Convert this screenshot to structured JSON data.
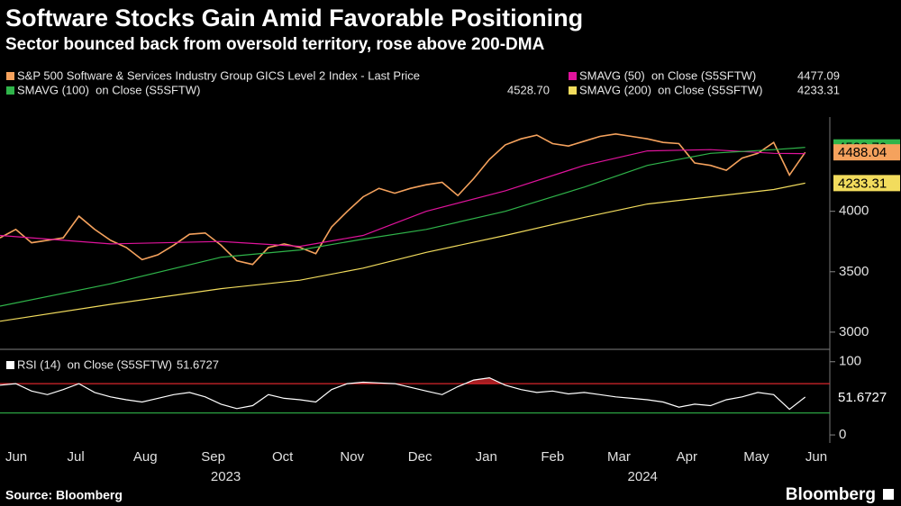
{
  "chart_data": [
    {
      "type": "line",
      "title": "Software Stocks Gain Amid Favorable Positioning",
      "subtitle": "Sector bounced back from oversold territory, rose above 200-DMA",
      "xlim": [
        0,
        52.5
      ],
      "ylim": [
        2880,
        4780
      ],
      "yticks": [
        3000,
        3500,
        4000
      ],
      "series": [
        {
          "name": "S&P 500 Software & Services Industry Group GICS Level 2 Index - Last Price",
          "color": "#f5a25d",
          "legend_value": false,
          "tag": true,
          "values": [
            3780,
            3850,
            3740,
            3760,
            3780,
            3960,
            3850,
            3760,
            3700,
            3600,
            3640,
            3720,
            3810,
            3820,
            3720,
            3590,
            3560,
            3700,
            3730,
            3700,
            3650,
            3870,
            4000,
            4120,
            4190,
            4150,
            4190,
            4220,
            4240,
            4130,
            4270,
            4430,
            4550,
            4600,
            4630,
            4560,
            4540,
            4580,
            4620,
            4640,
            4620,
            4600,
            4570,
            4560,
            4400,
            4380,
            4340,
            4440,
            4480,
            4570,
            4300,
            4488.04
          ]
        },
        {
          "name": "SMAVG (50)  on Close (S5SFTW)",
          "color": "#e0139c",
          "tag": false,
          "x": [
            0,
            7,
            14,
            19,
            23,
            27,
            32,
            37,
            41,
            45,
            49,
            51
          ],
          "values": [
            3800,
            3730,
            3750,
            3710,
            3800,
            4000,
            4170,
            4380,
            4500,
            4510,
            4480,
            4477.09
          ]
        },
        {
          "name": "SMAVG (100)  on Close (S5SFTW)",
          "color": "#2fb44a",
          "tag": true,
          "value_label": "4528.70",
          "x": [
            0,
            7,
            14,
            19,
            23,
            27,
            32,
            37,
            41,
            45,
            49,
            51
          ],
          "values": [
            3215,
            3400,
            3620,
            3680,
            3770,
            3850,
            4000,
            4200,
            4380,
            4480,
            4510,
            4528.7
          ]
        },
        {
          "name": "SMAVG (200)  on Close (S5SFTW)",
          "color": "#f2dc5d",
          "tag": true,
          "x": [
            0,
            7,
            14,
            19,
            23,
            27,
            32,
            37,
            41,
            45,
            49,
            51
          ],
          "values": [
            3090,
            3230,
            3360,
            3430,
            3530,
            3660,
            3800,
            3950,
            4060,
            4120,
            4180,
            4233.31
          ]
        }
      ]
    },
    {
      "type": "line",
      "xlim": [
        0,
        52.5
      ],
      "ylim": [
        -11,
        112
      ],
      "yticks": [
        0,
        100
      ],
      "hlines": [
        {
          "value": 70,
          "color": "#d9262b"
        },
        {
          "value": 30,
          "color": "#2fb44a"
        }
      ],
      "xticks": [
        {
          "value": 1.03,
          "label": "Jun"
        },
        {
          "value": 4.8,
          "label": "Jul"
        },
        {
          "value": 9.2,
          "label": "Aug"
        },
        {
          "value": 13.5,
          "label": "Sep"
        },
        {
          "value": 17.9,
          "label": "Oct"
        },
        {
          "value": 22.3,
          "label": "Nov"
        },
        {
          "value": 26.6,
          "label": "Dec"
        },
        {
          "value": 30.8,
          "label": "Jan"
        },
        {
          "value": 35,
          "label": "Feb"
        },
        {
          "value": 39.2,
          "label": "Mar"
        },
        {
          "value": 43.5,
          "label": "Apr"
        },
        {
          "value": 47.9,
          "label": "May"
        },
        {
          "value": 51.7,
          "label": "Jun"
        }
      ],
      "year_ticks": [
        {
          "value": 14.3,
          "label": "2023"
        },
        {
          "value": 40.7,
          "label": "2024"
        }
      ],
      "series": [
        {
          "name": "RSI (14)  on Close (S5SFTW)",
          "color": "#ffffff",
          "tag": true,
          "values": [
            68,
            70,
            60,
            55,
            62,
            70,
            58,
            52,
            48,
            45,
            50,
            55,
            58,
            52,
            42,
            36,
            40,
            55,
            50,
            48,
            45,
            62,
            70,
            72,
            71,
            70,
            65,
            60,
            55,
            66,
            75,
            78,
            68,
            62,
            58,
            60,
            56,
            58,
            55,
            52,
            50,
            48,
            45,
            38,
            42,
            40,
            48,
            52,
            58,
            55,
            35,
            51.6727
          ]
        }
      ]
    }
  ],
  "footer": {
    "source": "Source: Bloomberg",
    "brand": "Bloomberg"
  }
}
